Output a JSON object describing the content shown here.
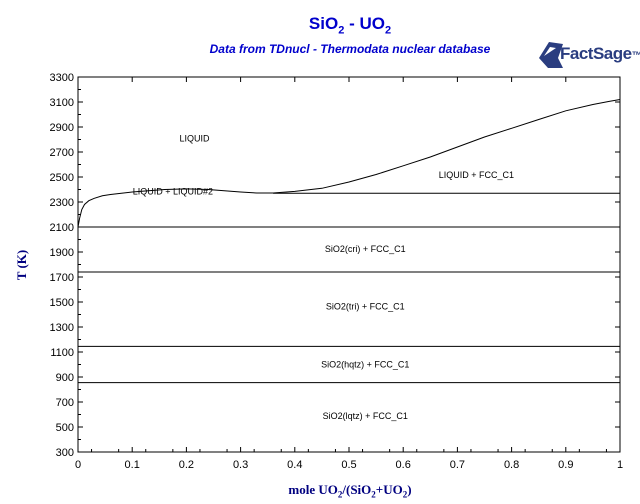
{
  "chart_data": {
    "type": "line",
    "title_main": "SiO",
    "title_sub1": "2",
    "title_mid": " - UO",
    "title_sub2": "2",
    "subtitle": "Data from TDnucl - Thermodata nuclear database",
    "logo_text_main": "FactSage",
    "logo_text_tm": "™",
    "ylabel": "T (K)",
    "xlabel_parts": [
      "mole UO",
      "2",
      "/(SiO",
      "2",
      "+UO",
      "2",
      ")"
    ],
    "xlim": [
      0,
      1
    ],
    "ylim": [
      300,
      3300
    ],
    "x_ticks": [
      0,
      0.1,
      0.2,
      0.3,
      0.4,
      0.5,
      0.6,
      0.7,
      0.8,
      0.9,
      1
    ],
    "x_tick_labels": [
      "0",
      "0.1",
      "0.2",
      "0.3",
      "0.4",
      "0.5",
      "0.6",
      "0.7",
      "0.8",
      "0.9",
      "1"
    ],
    "y_ticks": [
      300,
      500,
      700,
      900,
      1100,
      1300,
      1500,
      1700,
      1900,
      2100,
      2300,
      2500,
      2700,
      2900,
      3100,
      3300
    ],
    "y_tick_labels": [
      "300",
      "500",
      "700",
      "900",
      "1100",
      "1300",
      "1500",
      "1700",
      "1900",
      "2100",
      "2300",
      "2500",
      "2700",
      "2900",
      "3100",
      "3300"
    ],
    "horizontal_lines": [
      2100,
      1740,
      1145,
      855
    ],
    "partial_lines": [
      {
        "x": [
          0.36,
          1
        ],
        "y": 2370
      }
    ],
    "series": [
      {
        "x": [
          0,
          0.003,
          0.007,
          0.012,
          0.02,
          0.03,
          0.045,
          0.06,
          0.08,
          0.1,
          0.13,
          0.16,
          0.2,
          0.24,
          0.27,
          0.3,
          0.33,
          0.36,
          0.4,
          0.45,
          0.5,
          0.55,
          0.6,
          0.65,
          0.7,
          0.75,
          0.8,
          0.85,
          0.9,
          0.95,
          0.98,
          1
        ],
        "y": [
          2100,
          2170,
          2240,
          2280,
          2310,
          2330,
          2350,
          2360,
          2370,
          2380,
          2390,
          2400,
          2405,
          2400,
          2390,
          2380,
          2372,
          2372,
          2385,
          2410,
          2460,
          2520,
          2590,
          2660,
          2740,
          2820,
          2890,
          2960,
          3030,
          3080,
          3105,
          3120
        ]
      }
    ],
    "region_labels": [
      {
        "text": "LIQUID",
        "x": 0.215,
        "y": 2810
      },
      {
        "text": "LIQUID + LIQUID#2",
        "x": 0.175,
        "y": 2385
      },
      {
        "text": "LIQUID + FCC_C1",
        "x": 0.735,
        "y": 2515
      },
      {
        "text": "SiO2(cri) + FCC_C1",
        "x": 0.53,
        "y": 1925
      },
      {
        "text": "SiO2(tri) + FCC_C1",
        "x": 0.53,
        "y": 1465
      },
      {
        "text": "SiO2(hqtz) + FCC_C1",
        "x": 0.53,
        "y": 1000
      },
      {
        "text": "SiO2(lqtz) + FCC_C1",
        "x": 0.53,
        "y": 590
      }
    ],
    "colors": {
      "axis": "#000000",
      "title": "#0000cc",
      "label": "#000080",
      "logo": "#2a3d80"
    }
  }
}
